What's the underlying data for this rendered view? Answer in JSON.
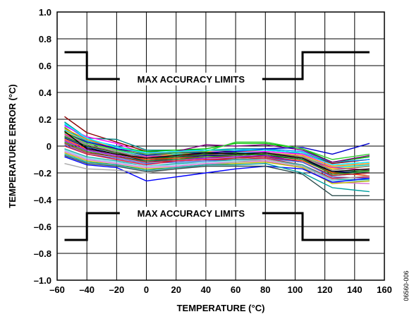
{
  "figure_id": "06560-006",
  "chart_data": {
    "type": "line",
    "xlabel": "TEMPERATURE (°C)",
    "ylabel": "TEMPERATURE ERROR (°C)",
    "xlim": [
      -60,
      160
    ],
    "ylim": [
      -1.0,
      1.0
    ],
    "x_ticks": [
      -60,
      -40,
      -20,
      0,
      20,
      40,
      60,
      80,
      100,
      120,
      140,
      160
    ],
    "x_tick_labels": [
      "–60",
      "–40",
      "–20",
      "0",
      "20",
      "40",
      "60",
      "80",
      "100",
      "120",
      "140",
      "160"
    ],
    "y_ticks": [
      -1.0,
      -0.8,
      -0.6,
      -0.4,
      -0.2,
      0,
      0.2,
      0.4,
      0.6,
      0.8,
      1.0
    ],
    "y_tick_labels": [
      "–1.0",
      "–0.8",
      "–0.6",
      "–0.4",
      "–0.2",
      "0",
      "0.2",
      "0.4",
      "0.6",
      "0.8",
      "1.0"
    ],
    "grid": true,
    "x": [
      -55,
      -40,
      -20,
      0,
      20,
      40,
      60,
      80,
      105,
      125,
      150
    ],
    "limits": {
      "label": "MAX ACCURACY LIMITS",
      "color": "#000000",
      "upper": [
        [
          -55,
          0.7
        ],
        [
          -40,
          0.7
        ],
        [
          -40,
          0.5
        ],
        [
          105,
          0.5
        ],
        [
          105,
          0.7
        ],
        [
          150,
          0.7
        ]
      ],
      "lower": [
        [
          -55,
          -0.7
        ],
        [
          -40,
          -0.7
        ],
        [
          -40,
          -0.5
        ],
        [
          105,
          -0.5
        ],
        [
          105,
          -0.7
        ],
        [
          150,
          -0.7
        ]
      ]
    },
    "series": [
      {
        "color": "#8b0000",
        "values": [
          0.22,
          0.1,
          0.03,
          -0.04,
          -0.05,
          -0.03,
          -0.04,
          -0.03,
          -0.05,
          -0.13,
          -0.1
        ]
      },
      {
        "color": "#008080",
        "values": [
          0.18,
          0.06,
          0.05,
          -0.03,
          -0.03,
          -0.03,
          -0.02,
          -0.02,
          -0.06,
          -0.12,
          -0.08
        ]
      },
      {
        "color": "#1e90ff",
        "values": [
          0.16,
          0.05,
          0.0,
          -0.06,
          -0.04,
          -0.03,
          -0.03,
          -0.02,
          -0.04,
          -0.12,
          -0.1
        ]
      },
      {
        "color": "#ff00ff",
        "values": [
          0.15,
          0.07,
          0.02,
          -0.06,
          -0.04,
          -0.04,
          -0.05,
          -0.04,
          -0.06,
          -0.14,
          -0.12
        ]
      },
      {
        "color": "#00c000",
        "values": [
          0.14,
          0.03,
          -0.01,
          -0.04,
          -0.03,
          -0.02,
          0.02,
          0.02,
          -0.02,
          -0.12,
          -0.08
        ]
      },
      {
        "color": "#ff8c00",
        "values": [
          0.13,
          0.05,
          -0.02,
          -0.07,
          -0.06,
          -0.05,
          -0.06,
          -0.05,
          -0.07,
          -0.15,
          -0.13
        ]
      },
      {
        "color": "#800080",
        "values": [
          0.12,
          0.04,
          -0.02,
          -0.05,
          -0.04,
          0.01,
          0.0,
          0.01,
          -0.03,
          -0.12,
          -0.07
        ]
      },
      {
        "color": "#00ced1",
        "values": [
          0.12,
          0.04,
          -0.03,
          -0.08,
          -0.06,
          -0.06,
          -0.05,
          -0.05,
          -0.08,
          -0.16,
          -0.14
        ]
      },
      {
        "color": "#ffd700",
        "values": [
          0.11,
          0.03,
          -0.03,
          -0.06,
          -0.07,
          -0.04,
          -0.06,
          -0.06,
          -0.08,
          -0.17,
          -0.15
        ]
      },
      {
        "color": "#0000cd",
        "values": [
          0.1,
          0.03,
          -0.02,
          -0.07,
          -0.05,
          -0.05,
          -0.04,
          -0.02,
          -0.01,
          -0.06,
          0.02
        ]
      },
      {
        "color": "#32cd32",
        "values": [
          0.1,
          0.02,
          -0.03,
          -0.06,
          -0.05,
          -0.04,
          0.03,
          0.03,
          -0.02,
          -0.1,
          -0.06
        ]
      },
      {
        "color": "#ff1493",
        "values": [
          0.09,
          0.01,
          -0.05,
          -0.08,
          -0.07,
          -0.06,
          -0.07,
          -0.06,
          -0.09,
          -0.16,
          -0.18
        ]
      },
      {
        "color": "#808080",
        "values": [
          0.08,
          0.01,
          -0.04,
          -0.09,
          -0.08,
          -0.07,
          -0.06,
          -0.05,
          -0.08,
          -0.18,
          -0.15
        ]
      },
      {
        "color": "#006400",
        "values": [
          0.07,
          0.0,
          -0.05,
          -0.1,
          -0.08,
          -0.06,
          -0.05,
          -0.07,
          -0.1,
          -0.2,
          -0.18
        ]
      },
      {
        "color": "#000080",
        "values": [
          0.06,
          -0.01,
          -0.06,
          -0.11,
          -0.09,
          -0.07,
          -0.07,
          -0.06,
          -0.1,
          -0.19,
          -0.2
        ]
      },
      {
        "color": "#ff4500",
        "values": [
          0.05,
          -0.02,
          -0.06,
          -0.1,
          -0.09,
          -0.08,
          -0.08,
          -0.08,
          -0.11,
          -0.2,
          -0.22
        ]
      },
      {
        "color": "#9400d3",
        "values": [
          0.04,
          -0.03,
          -0.07,
          -0.12,
          -0.1,
          -0.09,
          -0.08,
          -0.07,
          -0.12,
          -0.22,
          -0.2
        ]
      },
      {
        "color": "#228b22",
        "values": [
          0.03,
          -0.04,
          -0.08,
          -0.11,
          -0.1,
          -0.08,
          -0.07,
          -0.06,
          -0.1,
          -0.21,
          -0.19
        ]
      },
      {
        "color": "#a52a2a",
        "values": [
          0.02,
          -0.05,
          -0.08,
          -0.12,
          -0.11,
          -0.1,
          -0.09,
          -0.08,
          -0.12,
          -0.22,
          -0.2
        ]
      },
      {
        "color": "#4169e1",
        "values": [
          0.01,
          -0.06,
          -0.09,
          -0.13,
          -0.12,
          -0.11,
          -0.1,
          -0.09,
          -0.12,
          -0.23,
          -0.24
        ]
      },
      {
        "color": "#dc143c",
        "values": [
          0.0,
          -0.06,
          -0.1,
          -0.14,
          -0.11,
          -0.1,
          -0.1,
          -0.09,
          -0.14,
          -0.24,
          -0.23
        ]
      },
      {
        "color": "#20b2aa",
        "values": [
          -0.02,
          -0.08,
          -0.11,
          -0.15,
          -0.13,
          -0.12,
          -0.1,
          -0.1,
          -0.14,
          -0.25,
          -0.25
        ]
      },
      {
        "color": "#87ceeb",
        "values": [
          -0.03,
          -0.09,
          -0.12,
          -0.15,
          -0.14,
          -0.12,
          -0.11,
          -0.1,
          -0.15,
          -0.26,
          -0.26
        ]
      },
      {
        "color": "#da70d6",
        "values": [
          -0.04,
          -0.1,
          -0.13,
          -0.16,
          -0.15,
          -0.13,
          -0.12,
          -0.11,
          -0.16,
          -0.27,
          -0.28
        ]
      },
      {
        "color": "#b8b800",
        "values": [
          -0.05,
          -0.11,
          -0.14,
          -0.17,
          -0.16,
          -0.14,
          -0.13,
          -0.12,
          -0.16,
          -0.28,
          -0.26
        ]
      },
      {
        "color": "#0000ff",
        "values": [
          -0.08,
          -0.14,
          -0.16,
          -0.26,
          -0.23,
          -0.2,
          -0.17,
          -0.15,
          -0.17,
          -0.27,
          -0.24
        ]
      },
      {
        "color": "#a9a9a9",
        "values": [
          -0.13,
          -0.17,
          -0.18,
          -0.2,
          -0.17,
          -0.14,
          -0.12,
          -0.1,
          -0.15,
          -0.25,
          -0.22
        ]
      },
      {
        "color": "#00a0a0",
        "values": [
          -0.06,
          -0.12,
          -0.14,
          -0.18,
          -0.16,
          -0.14,
          -0.14,
          -0.13,
          -0.2,
          -0.31,
          -0.34
        ]
      },
      {
        "color": "#2f4f4f",
        "values": [
          -0.07,
          -0.13,
          -0.15,
          -0.19,
          -0.17,
          -0.15,
          -0.15,
          -0.15,
          -0.21,
          -0.37,
          -0.37
        ]
      },
      {
        "color": "#00ffff",
        "values": [
          0.17,
          0.06,
          -0.01,
          -0.05,
          -0.04,
          -0.03,
          -0.03,
          -0.03,
          -0.05,
          -0.14,
          -0.12
        ]
      },
      {
        "color": "#000000",
        "values": [
          0.11,
          -0.02,
          -0.06,
          -0.09,
          -0.07,
          -0.05,
          -0.06,
          -0.05,
          -0.09,
          -0.19,
          -0.17
        ]
      }
    ]
  }
}
